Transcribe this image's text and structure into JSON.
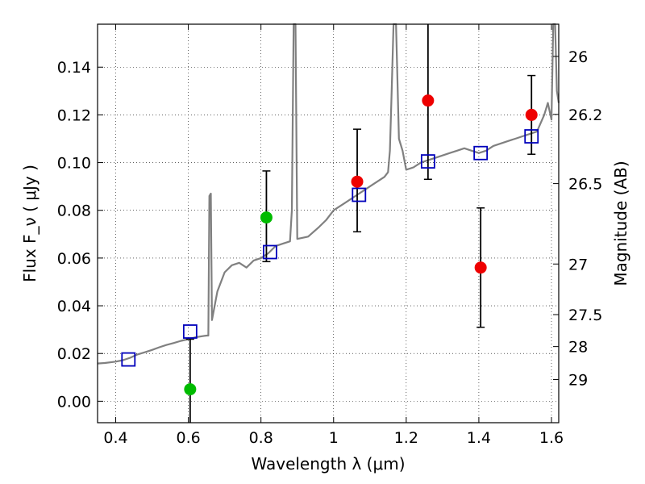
{
  "chart_data": {
    "type": "scatter",
    "xlabel": "Wavelength  λ (μm)",
    "ylabel": "Flux  F_ν  ( μJy )",
    "y2label": "Magnitude (AB)",
    "xlim": [
      0.35,
      1.62
    ],
    "ylim": [
      -0.009,
      0.158
    ],
    "xticks": [
      0.4,
      0.6,
      0.8,
      1.0,
      1.2,
      1.4,
      1.6
    ],
    "xtick_labels": [
      "0.4",
      "0.6",
      "0.8",
      "1",
      "1.2",
      "1.4",
      "1.6"
    ],
    "yticks": [
      0.0,
      0.02,
      0.04,
      0.06,
      0.08,
      0.1,
      0.12,
      0.14
    ],
    "ytick_labels": [
      "0.00",
      "0.02",
      "0.04",
      "0.06",
      "0.08",
      "0.10",
      "0.12",
      "0.14"
    ],
    "y2ticks": [
      {
        "label": "26",
        "flux": 0.1445
      },
      {
        "label": "26.2",
        "flux": 0.1202
      },
      {
        "label": "26.5",
        "flux": 0.0912
      },
      {
        "label": "27",
        "flux": 0.0575
      },
      {
        "label": "27.5",
        "flux": 0.0363
      },
      {
        "label": "28",
        "flux": 0.0229
      },
      {
        "label": "29",
        "flux": 0.0091
      }
    ],
    "grid": true,
    "colors": {
      "model": "#808080",
      "green": "#00bb00",
      "red": "#ee0000",
      "square": "#0000bb",
      "errorbar": "#000000"
    },
    "series": [
      {
        "kind": "model-spectrum",
        "points": [
          [
            0.35,
            0.0158
          ],
          [
            0.37,
            0.016
          ],
          [
            0.4,
            0.0166
          ],
          [
            0.42,
            0.0172
          ],
          [
            0.44,
            0.0182
          ],
          [
            0.46,
            0.0196
          ],
          [
            0.48,
            0.0205
          ],
          [
            0.5,
            0.0215
          ],
          [
            0.52,
            0.0226
          ],
          [
            0.54,
            0.0236
          ],
          [
            0.56,
            0.0244
          ],
          [
            0.58,
            0.0253
          ],
          [
            0.6,
            0.026
          ],
          [
            0.62,
            0.0268
          ],
          [
            0.65,
            0.0275
          ],
          [
            0.655,
            0.0275
          ],
          [
            0.658,
            0.086
          ],
          [
            0.662,
            0.087
          ],
          [
            0.665,
            0.034
          ],
          [
            0.68,
            0.046
          ],
          [
            0.7,
            0.054
          ],
          [
            0.72,
            0.057
          ],
          [
            0.74,
            0.058
          ],
          [
            0.76,
            0.056
          ],
          [
            0.78,
            0.059
          ],
          [
            0.8,
            0.06
          ],
          [
            0.82,
            0.062
          ],
          [
            0.84,
            0.065
          ],
          [
            0.86,
            0.066
          ],
          [
            0.88,
            0.067
          ],
          [
            0.885,
            0.08
          ],
          [
            0.89,
            0.158
          ],
          [
            0.895,
            0.158
          ],
          [
            0.9,
            0.068
          ],
          [
            0.93,
            0.069
          ],
          [
            0.96,
            0.073
          ],
          [
            0.98,
            0.076
          ],
          [
            1.0,
            0.08
          ],
          [
            1.03,
            0.083
          ],
          [
            1.06,
            0.086
          ],
          [
            1.08,
            0.088
          ],
          [
            1.1,
            0.09
          ],
          [
            1.12,
            0.092
          ],
          [
            1.14,
            0.094
          ],
          [
            1.15,
            0.096
          ],
          [
            1.155,
            0.105
          ],
          [
            1.16,
            0.13
          ],
          [
            1.165,
            0.158
          ],
          [
            1.172,
            0.158
          ],
          [
            1.18,
            0.11
          ],
          [
            1.19,
            0.105
          ],
          [
            1.2,
            0.097
          ],
          [
            1.22,
            0.098
          ],
          [
            1.24,
            0.1
          ],
          [
            1.26,
            0.101
          ],
          [
            1.28,
            0.102
          ],
          [
            1.3,
            0.103
          ],
          [
            1.32,
            0.104
          ],
          [
            1.34,
            0.105
          ],
          [
            1.36,
            0.106
          ],
          [
            1.38,
            0.105
          ],
          [
            1.4,
            0.104
          ],
          [
            1.42,
            0.105
          ],
          [
            1.44,
            0.107
          ],
          [
            1.46,
            0.108
          ],
          [
            1.48,
            0.109
          ],
          [
            1.5,
            0.11
          ],
          [
            1.52,
            0.111
          ],
          [
            1.54,
            0.112
          ],
          [
            1.56,
            0.113
          ],
          [
            1.58,
            0.12
          ],
          [
            1.59,
            0.125
          ],
          [
            1.6,
            0.118
          ],
          [
            1.605,
            0.158
          ],
          [
            1.61,
            0.158
          ],
          [
            1.615,
            0.13
          ],
          [
            1.62,
            0.125
          ]
        ]
      },
      {
        "kind": "green-observed",
        "x": [
          0.605,
          0.815
        ],
        "y": [
          0.005,
          0.077
        ],
        "yerr_low": [
          0.04,
          0.0185
        ],
        "yerr_high": [
          0.021,
          0.0195
        ]
      },
      {
        "kind": "red-observed",
        "x": [
          1.065,
          1.26,
          1.405,
          1.545
        ],
        "y": [
          0.092,
          0.126,
          0.056,
          0.12
        ],
        "yerr_low": [
          0.021,
          0.033,
          0.025,
          0.0165
        ],
        "yerr_high": [
          0.022,
          0.035,
          0.025,
          0.0165
        ]
      },
      {
        "kind": "model-photometry",
        "x": [
          0.435,
          0.605,
          0.825,
          1.07,
          1.26,
          1.405,
          1.545
        ],
        "y": [
          0.0175,
          0.0292,
          0.0625,
          0.0865,
          0.1005,
          0.104,
          0.111
        ]
      }
    ]
  }
}
